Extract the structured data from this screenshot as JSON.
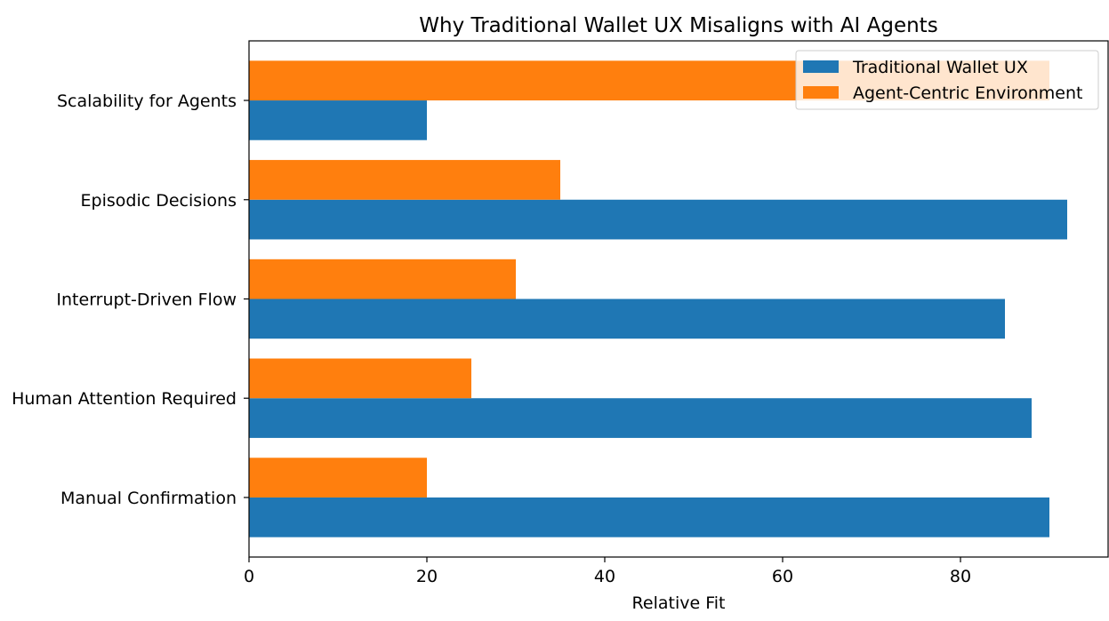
{
  "chart_data": {
    "type": "bar",
    "orientation": "horizontal",
    "title": "Why Traditional Wallet UX Misaligns with AI Agents",
    "xlabel": "Relative Fit",
    "ylabel": "",
    "xlim": [
      0,
      96.6
    ],
    "xticks": [
      "0",
      "20",
      "40",
      "60",
      "80"
    ],
    "categories": [
      "Manual Confirmation",
      "Human Attention Required",
      "Interrupt-Driven Flow",
      "Episodic Decisions",
      "Scalability for Agents"
    ],
    "series": [
      {
        "name": "Traditional Wallet UX",
        "color": "#1f77b4",
        "values": [
          90,
          88,
          85,
          92,
          20
        ]
      },
      {
        "name": "Agent-Centric Environment",
        "color": "#ff7f0e",
        "values": [
          20,
          25,
          30,
          35,
          90
        ]
      }
    ],
    "legend": "top-right",
    "grid": false
  }
}
